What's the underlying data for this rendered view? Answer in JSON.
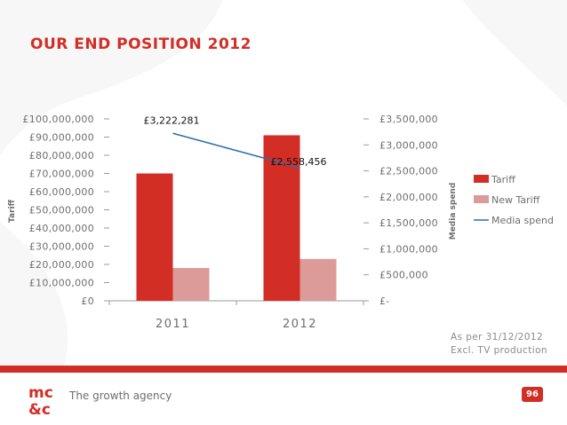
{
  "slide": {
    "title": "OUR END POSITION 2012",
    "note_lines": [
      "As per 31/12/2012",
      "Excl. TV production"
    ],
    "page_number": "96"
  },
  "footer": {
    "tagline": "The growth agency",
    "logo_text": "mc&c"
  },
  "colors": {
    "brand_red": "#d22e26",
    "tariff": "#d22e26",
    "new_tariff": "#dc9b98",
    "media_spend": "#2f6fa7"
  },
  "chart_data": {
    "type": "bar",
    "categories": [
      "2011",
      "2012"
    ],
    "series": [
      {
        "name": "Tariff",
        "type": "bar",
        "axis": "left",
        "values": [
          70000000,
          91000000
        ],
        "color": "#d22e26"
      },
      {
        "name": "New Tariff",
        "type": "bar",
        "axis": "left",
        "values": [
          18000000,
          23000000
        ],
        "color": "#dc9b98"
      },
      {
        "name": "Media spend",
        "type": "line",
        "axis": "right",
        "values": [
          3222281,
          2558456
        ],
        "data_labels": [
          "£3,222,281",
          "£2,558,456"
        ],
        "color": "#2f6fa7"
      }
    ],
    "ylabel": "Tariff",
    "y2label": "Media spend",
    "ylim": [
      0,
      100000000
    ],
    "y2lim": [
      0,
      3500000
    ],
    "yticks": [
      "£0",
      "£10,000,000",
      "£20,000,000",
      "£30,000,000",
      "£40,000,000",
      "£50,000,000",
      "£60,000,000",
      "£70,000,000",
      "£80,000,000",
      "£90,000,000",
      "£100,000,000"
    ],
    "y2ticks": [
      "£-",
      "£500,000",
      "£1,000,000",
      "£1,500,000",
      "£2,000,000",
      "£2,500,000",
      "£3,000,000",
      "£3,500,000"
    ],
    "grid": false,
    "legend_position": "right"
  }
}
